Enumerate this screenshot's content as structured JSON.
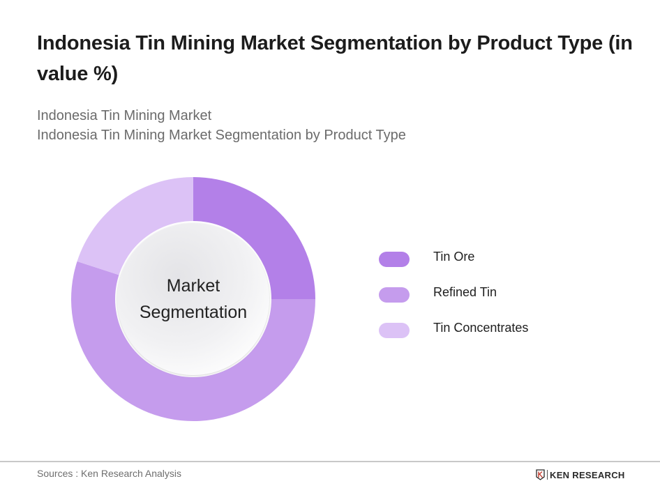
{
  "header": {
    "title": "Indonesia Tin Mining Market Segmentation by Product Type (in value %)",
    "subtitle_line1": "Indonesia Tin Mining Market",
    "subtitle_line2": "Indonesia Tin Mining Market Segmentation by Product Type"
  },
  "chart_data": {
    "type": "pie",
    "variant": "donut",
    "title": "Indonesia Tin Mining Market Segmentation by Product Type (in value %)",
    "center_label": [
      "Market",
      "Segmentation"
    ],
    "categories": [
      "Tin Ore",
      "Refined Tin",
      "Tin Concentrates"
    ],
    "values": [
      25,
      55,
      20
    ],
    "unit": "%",
    "colors": [
      "#b380e8",
      "#c59ced",
      "#dcc2f6"
    ],
    "start_angle_deg": 0,
    "direction": "clockwise",
    "legend_position": "right",
    "data_labels_shown": false
  },
  "legend": {
    "items": [
      {
        "label": "Tin Ore",
        "color": "#b380e8"
      },
      {
        "label": "Refined Tin",
        "color": "#c59ced"
      },
      {
        "label": "Tin Concentrates",
        "color": "#dcc2f6"
      }
    ]
  },
  "center": {
    "line1": "Market",
    "line2": "Segmentation"
  },
  "footer": {
    "source": "Sources : Ken Research Analysis",
    "brand": "KEN RESEARCH"
  }
}
